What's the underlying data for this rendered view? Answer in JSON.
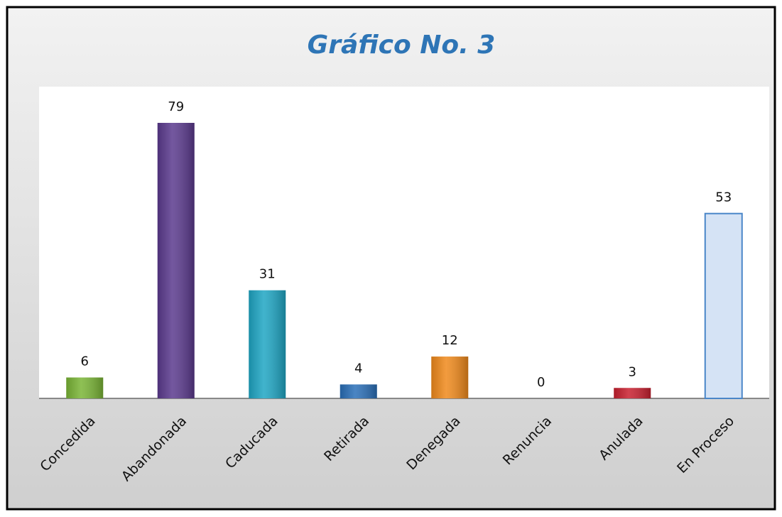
{
  "chart_data": {
    "type": "bar",
    "title": "Gráfico No. 3",
    "categories": [
      "Concedida",
      "Abandonada",
      "Caducada",
      "Retirada",
      "Denegada",
      "Renuncia",
      "Anulada",
      "En Proceso"
    ],
    "values": [
      6,
      79,
      31,
      4,
      12,
      0,
      3,
      53
    ],
    "colors": [
      "#7ab536",
      "#5b3a8e",
      "#1fa6c4",
      "#2a6fb8",
      "#f08a1c",
      "#c0c0c0",
      "#c8202f",
      "#d5e3f5"
    ]
  }
}
